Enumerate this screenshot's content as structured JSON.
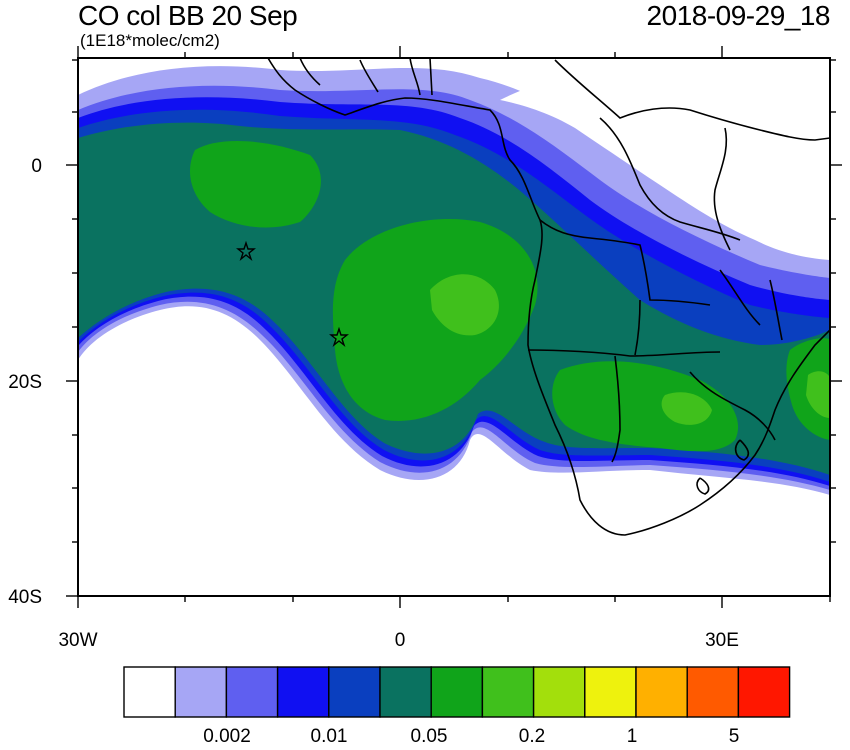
{
  "title": {
    "main": "CO col BB 20 Sep",
    "units": "(1E18*molec/cm2)",
    "valid_time": "2018-09-29_18"
  },
  "axes": {
    "lat_ticks": [
      {
        "value": 0,
        "label": "0"
      },
      {
        "value": -20,
        "label": "20S"
      },
      {
        "value": -40,
        "label": "40S"
      }
    ],
    "lon_ticks": [
      {
        "value": -30,
        "label": "30W"
      },
      {
        "value": 0,
        "label": "0"
      },
      {
        "value": 30,
        "label": "30E"
      }
    ],
    "lon_range": [
      -30,
      40
    ],
    "lat_range": [
      -40,
      10
    ]
  },
  "colorbar": {
    "colors": [
      "#ffffff",
      "#a6a6f5",
      "#5f5ff0",
      "#1010f2",
      "#0a3fbf",
      "#0a7260",
      "#10a41a",
      "#40c01c",
      "#a3df0c",
      "#eef20d",
      "#ffb000",
      "#ff5a00",
      "#ff1700"
    ],
    "labels": [
      "0.002",
      "0.01",
      "0.05",
      "0.2",
      "1",
      "5"
    ]
  },
  "markers": [
    {
      "name": "star-marker-west",
      "lon": -14.5,
      "lat": -8
    },
    {
      "name": "star-marker-east",
      "lon": -5.7,
      "lat": -16
    }
  ],
  "chart_data": {
    "type": "heatmap",
    "title": "CO col BB 20 Sep",
    "units": "(1E18*molec/cm2)",
    "valid_time": "2018-09-29_18",
    "x_ticks": [
      "30W",
      "0",
      "30E"
    ],
    "y_ticks": [
      "0",
      "20S",
      "40S"
    ],
    "colorbar_labels": [
      "0.002",
      "0.01",
      "0.05",
      "0.2",
      "1",
      "5"
    ]
  }
}
